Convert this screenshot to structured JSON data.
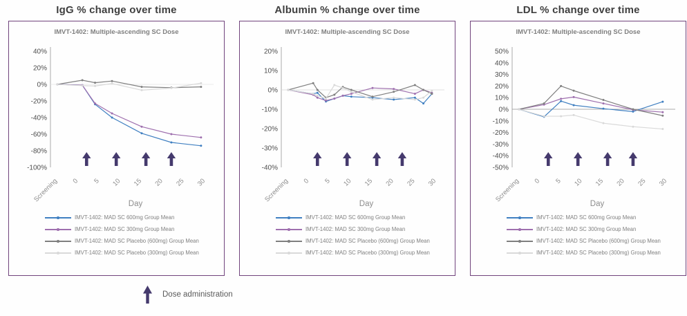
{
  "style": {
    "panel_border_color": "#70437c",
    "axis_color": "#a9a9a9",
    "y_tick_color": "#4d4d4d",
    "x_tick_color": "#8c8c8c",
    "dose_arrow_color": "#453a6d",
    "title_color": "#3f3f3f",
    "subtitle_color": "#7f7f7f"
  },
  "footer_legend": {
    "label": "Dose administration"
  },
  "chart_data": [
    {
      "type": "line",
      "title": "IgG % change over time",
      "subtitle": "IMVT-1402: Multiple-ascending SC Dose",
      "xlabel": "Day",
      "x_ticks": [
        "Screening",
        0,
        5,
        10,
        15,
        20,
        25,
        30
      ],
      "ylim": [
        -100,
        40
      ],
      "ystep": 20,
      "zero_line_color": "#e2e2e2",
      "dose_arrow_days": [
        2,
        9,
        16,
        22
      ],
      "x": [
        "Screening",
        1,
        4,
        8,
        15,
        22,
        29
      ],
      "series": [
        {
          "name": "IMVT-1402: MAD SC 600mg Group Mean",
          "color": "#3f7fc1",
          "values": [
            0,
            -1,
            -24,
            -40,
            -59,
            -70,
            -74
          ]
        },
        {
          "name": "IMVT-1402: MAD SC 300mg Group Mean",
          "color": "#9e6fae",
          "values": [
            0,
            -1,
            -23,
            -35,
            -51,
            -60,
            -64
          ]
        },
        {
          "name": "IMVT-1402: MAD SC Placebo (600mg) Group Mean",
          "color": "#7f7f7f",
          "values": [
            0,
            5,
            2,
            4,
            -3,
            -4,
            -3
          ]
        },
        {
          "name": "IMVT-1402: MAD SC Placebo (300mg) Group Mean",
          "color": "#d9d9d9",
          "values": [
            0,
            -1.5,
            -2,
            1,
            -7,
            -4.5,
            1.5
          ]
        }
      ]
    },
    {
      "type": "line",
      "title": "Albumin % change over time",
      "subtitle": "IMVT-1402: Multiple-ascending SC Dose",
      "xlabel": "Day",
      "x_ticks": [
        "Screening",
        0,
        5,
        10,
        15,
        20,
        25,
        30
      ],
      "ylim": [
        -40,
        20
      ],
      "ystep": 10,
      "zero_line_color": "#d6d6d6",
      "dose_arrow_days": [
        2,
        9,
        16,
        22
      ],
      "x": [
        "Screening",
        1,
        2,
        4,
        6,
        8,
        10,
        15,
        20,
        25,
        27,
        29
      ],
      "series": [
        {
          "name": "IMVT-1402: MAD SC 600mg Group Mean",
          "color": "#3f7fc1",
          "values": [
            0,
            -2,
            -1.5,
            -6,
            -4.5,
            -3,
            -3.5,
            -4,
            -5,
            -4,
            -7,
            -2
          ]
        },
        {
          "name": "IMVT-1402: MAD SC 300mg Group Mean",
          "color": "#9e6fae",
          "values": [
            0,
            -2.5,
            -4,
            -5.5,
            -4.5,
            -3,
            -2,
            1,
            0.5,
            -2,
            0,
            -1.5
          ]
        },
        {
          "name": "IMVT-1402: MAD SC Placebo (600mg) Group Mean",
          "color": "#7f7f7f",
          "values": [
            0,
            3.5,
            0,
            -4,
            -2.5,
            1.5,
            0,
            -3.5,
            -1,
            2.5,
            0,
            -2
          ]
        },
        {
          "name": "IMVT-1402: MAD SC Placebo (300mg) Group Mean",
          "color": "#d9d9d9",
          "values": [
            0,
            -2,
            -3,
            -4.5,
            2.5,
            1,
            -1,
            -5,
            -4,
            -5,
            -4,
            -0.5
          ]
        }
      ]
    },
    {
      "type": "line",
      "title": "LDL % change over time",
      "subtitle": "IMVT-1402: Multiple-ascending SC Dose",
      "xlabel": "Day",
      "x_ticks": [
        "Screening",
        0,
        5,
        10,
        15,
        20,
        25,
        30
      ],
      "ylim": [
        -50,
        50
      ],
      "ystep": 10,
      "zero_line_color": "#909090",
      "dose_arrow_days": [
        2,
        9,
        16,
        22
      ],
      "x": [
        "Screening",
        1,
        5,
        8,
        15,
        22,
        29
      ],
      "series": [
        {
          "name": "IMVT-1402: MAD SC 600mg Group Mean",
          "color": "#3f7fc1",
          "values": [
            0,
            -6.5,
            7,
            3.5,
            0.5,
            -2,
            6.5
          ]
        },
        {
          "name": "IMVT-1402: MAD SC 300mg Group Mean",
          "color": "#9e6fae",
          "values": [
            0,
            4,
            9,
            10.5,
            5,
            -0.5,
            -2.5
          ]
        },
        {
          "name": "IMVT-1402: MAD SC Placebo (600mg) Group Mean",
          "color": "#7f7f7f",
          "values": [
            0,
            5,
            20,
            16,
            8,
            0,
            -5.5
          ]
        },
        {
          "name": "IMVT-1402: MAD SC Placebo (300mg) Group Mean",
          "color": "#d9d9d9",
          "values": [
            0,
            -6,
            -6,
            -5,
            -12,
            -15,
            -17
          ]
        }
      ]
    }
  ]
}
